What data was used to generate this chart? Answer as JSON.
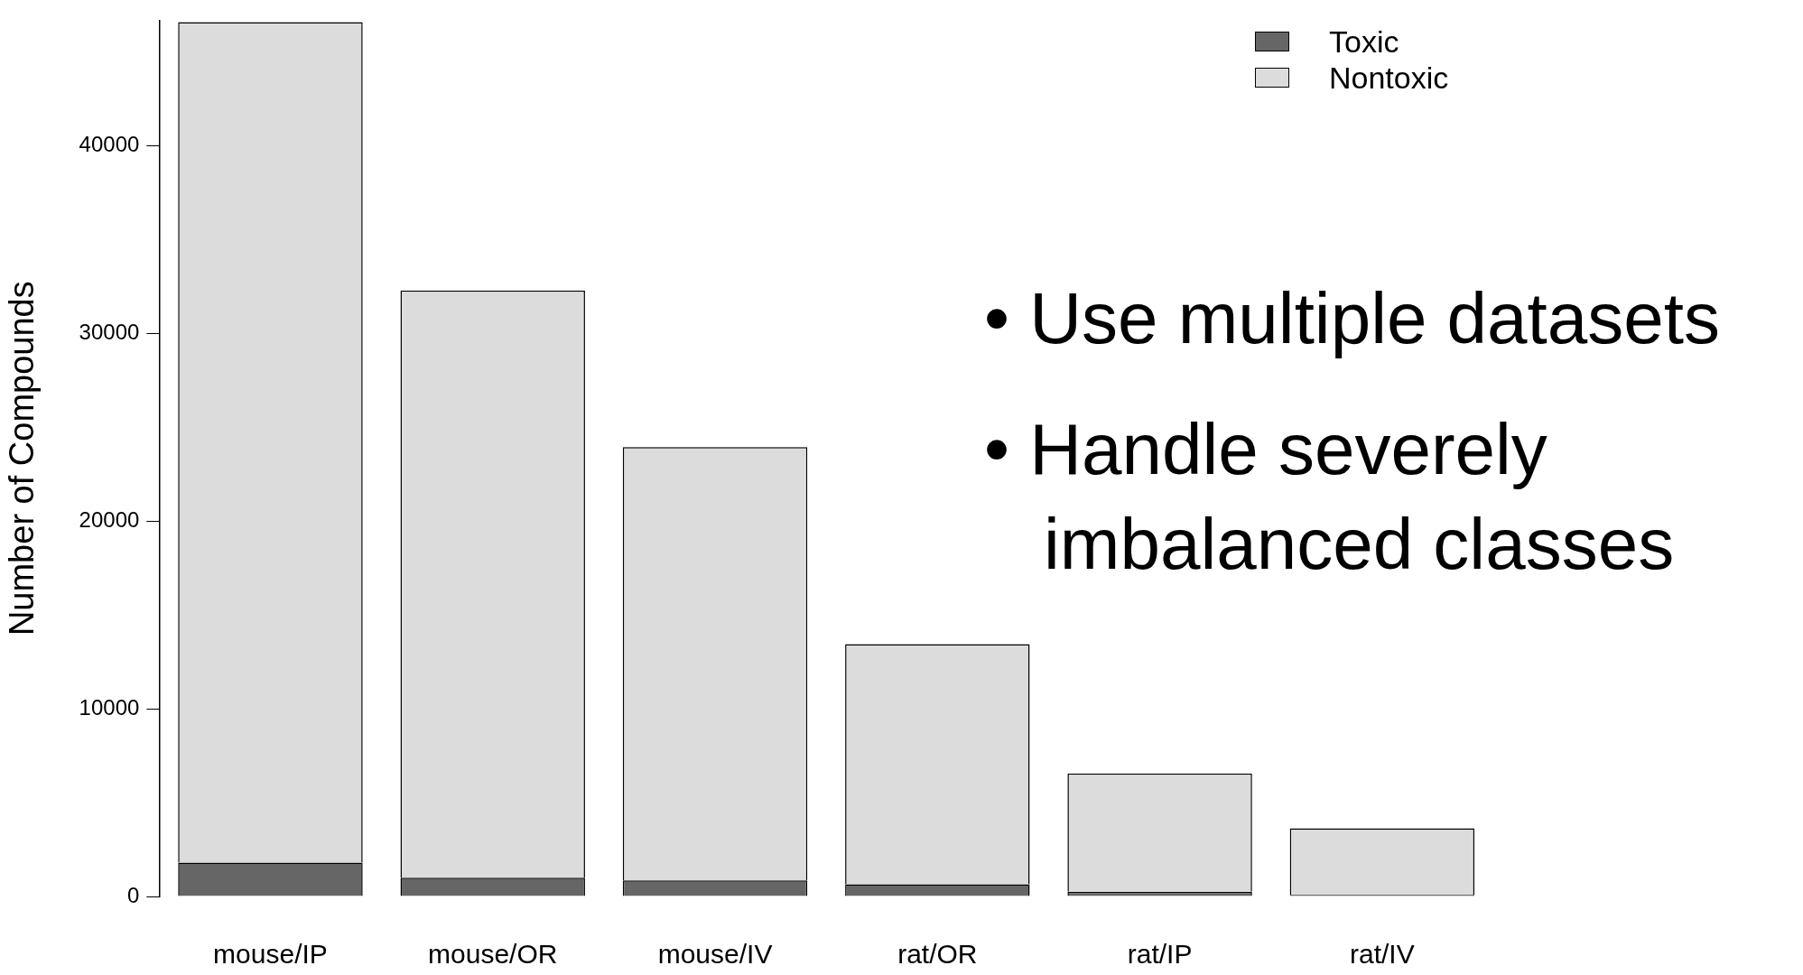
{
  "chart_data": {
    "type": "bar",
    "stacked": true,
    "ylabel": "Number of Compounds",
    "categories": [
      "mouse/IP",
      "mouse/OR",
      "mouse/IV",
      "rat/OR",
      "rat/IP",
      "rat/IV"
    ],
    "series": [
      {
        "name": "Toxic",
        "color": "#666666",
        "values": [
          1800,
          1000,
          850,
          650,
          250,
          80
        ]
      },
      {
        "name": "Nontoxic",
        "color": "#dcdcdc",
        "values": [
          44800,
          31300,
          23100,
          12800,
          6300,
          3550
        ]
      }
    ],
    "ylim": [
      0,
      46700
    ],
    "yticks": [
      0,
      10000,
      20000,
      30000,
      40000
    ],
    "grid": false,
    "legend": "top right",
    "annotations": [
      "• Use multiple datasets",
      "• Handle severely imbalanced classes"
    ]
  }
}
